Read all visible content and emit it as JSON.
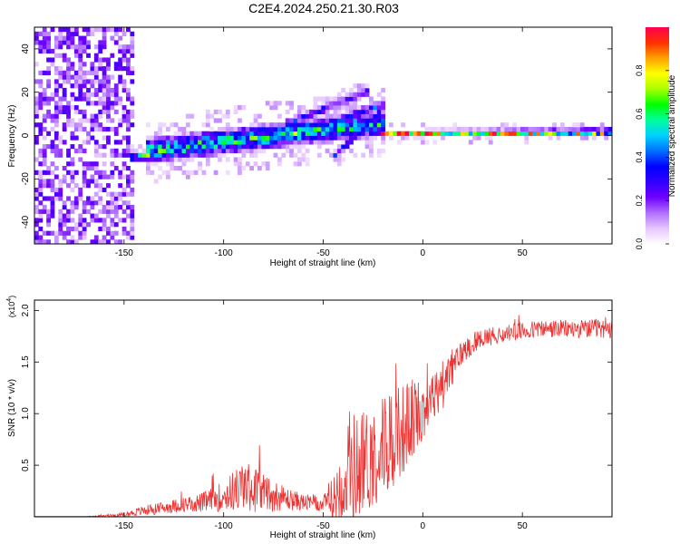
{
  "title": "C2E4.2024.250.21.30.R03",
  "chart_data": [
    {
      "type": "heatmap",
      "name": "spectrogram",
      "xlabel": "Height of straight line (km)",
      "ylabel": "Frequency (Hz)",
      "xlim": [
        -195,
        95
      ],
      "ylim": [
        -50,
        50
      ],
      "xticks": [
        -150,
        -100,
        -50,
        0,
        50
      ],
      "yticks": [
        -40,
        -20,
        0,
        20,
        40
      ],
      "colorbar": {
        "label": "Normalized spectral amplitude",
        "range": [
          0,
          1
        ],
        "ticks": [
          "0.0",
          "0.2",
          "0.4",
          "0.6",
          "0.8"
        ],
        "colors": [
          "#ffffff",
          "#e6c6ff",
          "#b070ff",
          "#7000ff",
          "#3000ff",
          "#0000ff",
          "#0070ff",
          "#00d0ff",
          "#00ff9c",
          "#00ff00",
          "#a8ff00",
          "#ffff00",
          "#ffa000",
          "#ff3000",
          "#ff0050"
        ]
      },
      "features": [
        {
          "kind": "noise_field",
          "x": [
            -195,
            -146
          ],
          "y": [
            -50,
            50
          ],
          "intensity": 0.22
        },
        {
          "kind": "band",
          "x": [
            -147,
            -130
          ],
          "y0": -11,
          "y1": -9,
          "width": 2.5,
          "intensity": 0.6
        },
        {
          "kind": "band",
          "x": [
            -140,
            -20
          ],
          "y0": -8,
          "y1": 5,
          "width": 7,
          "intensity": 0.55
        },
        {
          "kind": "band",
          "x": [
            -70,
            -28
          ],
          "y0": 4,
          "y1": 20,
          "width": 3,
          "intensity": 0.3
        },
        {
          "kind": "band",
          "x": [
            -60,
            -20
          ],
          "y0": 0,
          "y1": 14,
          "width": 3,
          "intensity": 0.35
        },
        {
          "kind": "band",
          "x": [
            -45,
            -22
          ],
          "y0": -10,
          "y1": 10,
          "width": 3,
          "intensity": 0.35
        },
        {
          "kind": "band",
          "x": [
            -22,
            95
          ],
          "y0": 0,
          "y1": 0.5,
          "width": 2,
          "intensity": 0.85
        }
      ]
    },
    {
      "type": "line",
      "name": "snr",
      "xlabel": "Height of straight line (km)",
      "ylabel": "SNR (10 * v/v)",
      "y_scale_note": "(x10",
      "y_scale_exp": "4",
      "xlim": [
        -195,
        95
      ],
      "ylim": [
        0,
        2.1
      ],
      "xticks": [
        -150,
        -100,
        -50,
        0,
        50
      ],
      "yticks": [
        "0.5",
        "1.0",
        "1.5",
        "2.0"
      ],
      "color": "#ee3333",
      "series": [
        {
          "name": "SNR",
          "x": [
            -195,
            -170,
            -150,
            -140,
            -130,
            -120,
            -110,
            -100,
            -90,
            -80,
            -70,
            -60,
            -50,
            -45,
            -40,
            -35,
            -30,
            -25,
            -20,
            -15,
            -10,
            -5,
            0,
            5,
            10,
            15,
            20,
            25,
            30,
            40,
            50,
            60,
            70,
            80,
            95
          ],
          "y": [
            0.0,
            0.0,
            0.02,
            0.06,
            0.09,
            0.12,
            0.14,
            0.2,
            0.3,
            0.24,
            0.18,
            0.14,
            0.12,
            0.16,
            0.38,
            0.48,
            0.52,
            0.58,
            0.7,
            0.78,
            0.85,
            0.95,
            1.05,
            1.15,
            1.28,
            1.45,
            1.6,
            1.68,
            1.74,
            1.77,
            1.8,
            1.82,
            1.82,
            1.82,
            1.82
          ],
          "noise": [
            0.0,
            0.0,
            0.02,
            0.05,
            0.06,
            0.07,
            0.1,
            0.15,
            0.25,
            0.2,
            0.12,
            0.08,
            0.08,
            0.2,
            0.45,
            0.55,
            0.55,
            0.5,
            0.5,
            0.5,
            0.45,
            0.4,
            0.3,
            0.25,
            0.25,
            0.18,
            0.12,
            0.1,
            0.09,
            0.09,
            0.09,
            0.09,
            0.09,
            0.09,
            0.09
          ]
        }
      ]
    }
  ]
}
